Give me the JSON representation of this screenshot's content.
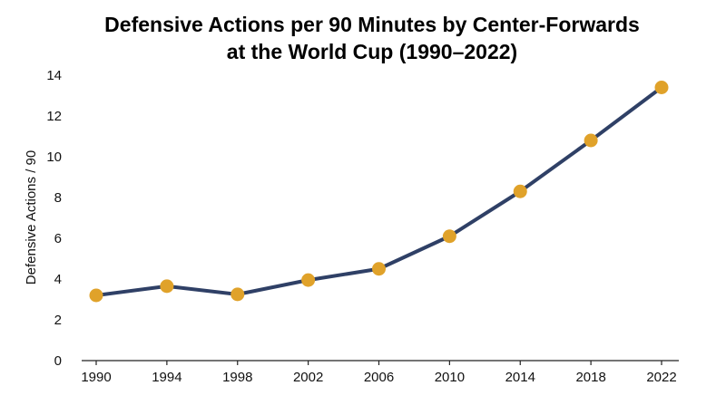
{
  "chart_data": {
    "type": "line",
    "title_lines": [
      "Defensive Actions per 90 Minutes by Center-Forwards",
      "at the World Cup (1990–2022)"
    ],
    "xlabel": "",
    "ylabel": "Defensive Actions / 90",
    "x": [
      1990,
      1994,
      1998,
      2002,
      2006,
      2010,
      2014,
      2018,
      2022
    ],
    "x_tick_labels": [
      "1990",
      "1994",
      "1998",
      "2002",
      "2006",
      "2010",
      "2014",
      "2018",
      "2022"
    ],
    "series": [
      {
        "values": [
          3.2,
          3.65,
          3.25,
          3.95,
          4.5,
          6.1,
          8.3,
          10.8,
          13.4
        ]
      }
    ],
    "ylim": [
      0,
      14
    ],
    "y_ticks": [
      0,
      2,
      4,
      6,
      8,
      10,
      12,
      14
    ],
    "grid": false,
    "legend": "none",
    "colors": {
      "line": "#2f4066",
      "marker": "#e0a22a",
      "axis": "#222222"
    }
  }
}
